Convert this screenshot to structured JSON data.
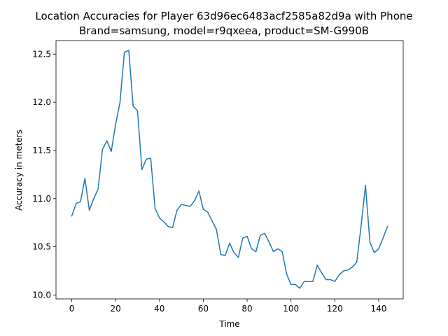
{
  "chart_data": {
    "type": "line",
    "title_line1": "Location Accuracies for Player 63d96ec6483acf2585a82d9a with Phone",
    "title_line2": "Brand=samsung, model=r9qxeea, product=SM-G990B",
    "xlabel": "Time",
    "ylabel": "Accuracy in meters",
    "xlim": [
      -7.2,
      151.2
    ],
    "ylim": [
      9.96,
      12.64
    ],
    "xticks": [
      0,
      20,
      40,
      60,
      80,
      100,
      120,
      140
    ],
    "yticks": [
      10.0,
      10.5,
      11.0,
      11.5,
      12.0,
      12.5
    ],
    "grid": false,
    "line_color": "#1f77b4",
    "series": [
      {
        "x": [
          0,
          2,
          4,
          6,
          8,
          10,
          12,
          14,
          16,
          18,
          20,
          22,
          24,
          26,
          28,
          30,
          32,
          34,
          36,
          38,
          40,
          42,
          44,
          46,
          48,
          50,
          52,
          54,
          56,
          58,
          60,
          62,
          64,
          66,
          68,
          70,
          72,
          74,
          76,
          78,
          80,
          82,
          84,
          86,
          88,
          90,
          92,
          94,
          96,
          98,
          100,
          102,
          104,
          106,
          108,
          110,
          112,
          114,
          116,
          118,
          120,
          122,
          124,
          126,
          128,
          130,
          132,
          134,
          136,
          138,
          140,
          142,
          144
        ],
        "y": [
          10.82,
          10.95,
          10.97,
          11.21,
          10.88,
          11.0,
          11.1,
          11.51,
          11.6,
          11.49,
          11.77,
          12.0,
          12.52,
          12.54,
          11.96,
          11.91,
          11.3,
          11.41,
          11.42,
          10.9,
          10.8,
          10.76,
          10.71,
          10.7,
          10.88,
          10.94,
          10.93,
          10.92,
          10.98,
          11.08,
          10.89,
          10.86,
          10.77,
          10.68,
          10.42,
          10.41,
          10.54,
          10.44,
          10.39,
          10.59,
          10.61,
          10.48,
          10.45,
          10.62,
          10.64,
          10.55,
          10.45,
          10.48,
          10.45,
          10.22,
          10.11,
          10.11,
          10.07,
          10.14,
          10.14,
          10.14,
          10.31,
          10.23,
          10.16,
          10.16,
          10.14,
          10.21,
          10.25,
          10.26,
          10.29,
          10.34,
          10.72,
          11.14,
          10.55,
          10.44,
          10.48,
          10.59,
          10.71
        ]
      }
    ]
  }
}
